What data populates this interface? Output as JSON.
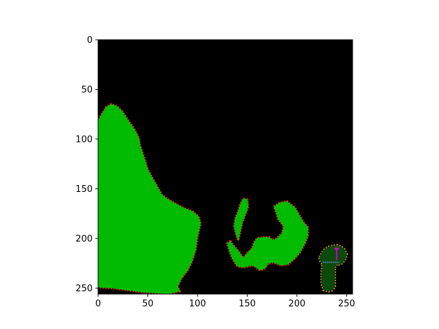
{
  "chart_data": {
    "type": "heatmap",
    "title": "",
    "xlabel": "",
    "ylabel": "",
    "image_size": [
      256,
      256
    ],
    "xlim": [
      0,
      256
    ],
    "ylim": [
      256,
      0
    ],
    "y_axis_inverted": true,
    "grid": false,
    "legend": "none",
    "x_ticks": [
      "0",
      "50",
      "100",
      "150",
      "200",
      "250"
    ],
    "y_ticks": [
      "0",
      "50",
      "100",
      "150",
      "200",
      "250"
    ],
    "x_tick_values": [
      0,
      50,
      100,
      150,
      200,
      250
    ],
    "y_tick_values": [
      0,
      50,
      100,
      150,
      200,
      250
    ],
    "colors": {
      "background": "#000000",
      "bright_green": "#00bb00",
      "dark_green": "#0a4a0a",
      "red": "#dd0000",
      "pink": "#e07a8a",
      "orange": "#e8902a",
      "slate_blue": "#5a7ab0",
      "magenta": "#cc00cc"
    },
    "regions": [
      {
        "label": "large-left-region",
        "color": "bright_green",
        "polygon": [
          [
            0,
            83
          ],
          [
            2,
            78
          ],
          [
            5,
            73
          ],
          [
            8,
            68
          ],
          [
            13,
            65
          ],
          [
            19,
            67
          ],
          [
            24,
            72
          ],
          [
            28,
            78
          ],
          [
            32,
            84
          ],
          [
            37,
            91
          ],
          [
            41,
            99
          ],
          [
            42,
            106
          ],
          [
            45,
            115
          ],
          [
            47,
            121
          ],
          [
            50,
            131
          ],
          [
            55,
            140
          ],
          [
            59,
            147
          ],
          [
            64,
            156
          ],
          [
            69,
            160
          ],
          [
            76,
            164
          ],
          [
            85,
            169
          ],
          [
            95,
            173
          ],
          [
            101,
            178
          ],
          [
            103,
            185
          ],
          [
            100,
            198
          ],
          [
            98,
            212
          ],
          [
            94,
            224
          ],
          [
            90,
            232
          ],
          [
            84,
            240
          ],
          [
            80,
            248
          ],
          [
            82,
            253
          ],
          [
            70,
            256
          ],
          [
            60,
            255
          ],
          [
            45,
            254
          ],
          [
            30,
            252
          ],
          [
            15,
            250
          ],
          [
            0,
            249
          ]
        ]
      },
      {
        "label": "middle-right-region",
        "color": "bright_green",
        "polygon": [
          [
            133,
            203
          ],
          [
            136,
            207
          ],
          [
            142,
            214
          ],
          [
            146,
            220
          ],
          [
            150,
            215
          ],
          [
            155,
            210
          ],
          [
            157,
            204
          ],
          [
            160,
            200
          ],
          [
            166,
            199
          ],
          [
            172,
            199
          ],
          [
            176,
            202
          ],
          [
            180,
            200
          ],
          [
            185,
            195
          ],
          [
            187,
            188
          ],
          [
            181,
            180
          ],
          [
            179,
            173
          ],
          [
            177,
            168
          ],
          [
            183,
            164
          ],
          [
            190,
            163
          ],
          [
            198,
            169
          ],
          [
            202,
            176
          ],
          [
            206,
            183
          ],
          [
            211,
            189
          ],
          [
            211,
            197
          ],
          [
            208,
            205
          ],
          [
            203,
            214
          ],
          [
            198,
            220
          ],
          [
            191,
            226
          ],
          [
            184,
            227
          ],
          [
            176,
            224
          ],
          [
            171,
            225
          ],
          [
            168,
            230
          ],
          [
            163,
            232
          ],
          [
            156,
            227
          ],
          [
            146,
            229
          ],
          [
            140,
            228
          ],
          [
            135,
            220
          ],
          [
            132,
            212
          ],
          [
            130,
            205
          ]
        ]
      },
      {
        "label": "middle-small-loop",
        "color": "bright_green",
        "polygon": [
          [
            138,
            180
          ],
          [
            141,
            173
          ],
          [
            143,
            166
          ],
          [
            146,
            160
          ],
          [
            150,
            161
          ],
          [
            151,
            168
          ],
          [
            148,
            176
          ],
          [
            145,
            184
          ],
          [
            143,
            193
          ],
          [
            141,
            202
          ],
          [
            139,
            196
          ],
          [
            137,
            188
          ]
        ]
      },
      {
        "label": "far-right-region",
        "color": "dark_green",
        "polygon": [
          [
            223,
            219
          ],
          [
            227,
            212
          ],
          [
            233,
            208
          ],
          [
            241,
            207
          ],
          [
            247,
            210
          ],
          [
            250,
            216
          ],
          [
            248,
            222
          ],
          [
            244,
            226
          ],
          [
            240,
            226
          ],
          [
            238,
            229
          ],
          [
            238,
            238
          ],
          [
            238,
            248
          ],
          [
            236,
            252
          ],
          [
            232,
            253
          ],
          [
            227,
            252
          ],
          [
            225,
            245
          ],
          [
            225,
            235
          ],
          [
            226,
            226
          ],
          [
            223,
            222
          ]
        ]
      }
    ],
    "annotations": [
      {
        "label": "arrow-marker",
        "color": "magenta",
        "points": [
          [
            240,
            210
          ],
          [
            240,
            222
          ]
        ]
      },
      {
        "label": "blue-band",
        "color": "slate_blue",
        "points": [
          [
            226,
            224
          ],
          [
            243,
            224
          ]
        ]
      }
    ]
  }
}
